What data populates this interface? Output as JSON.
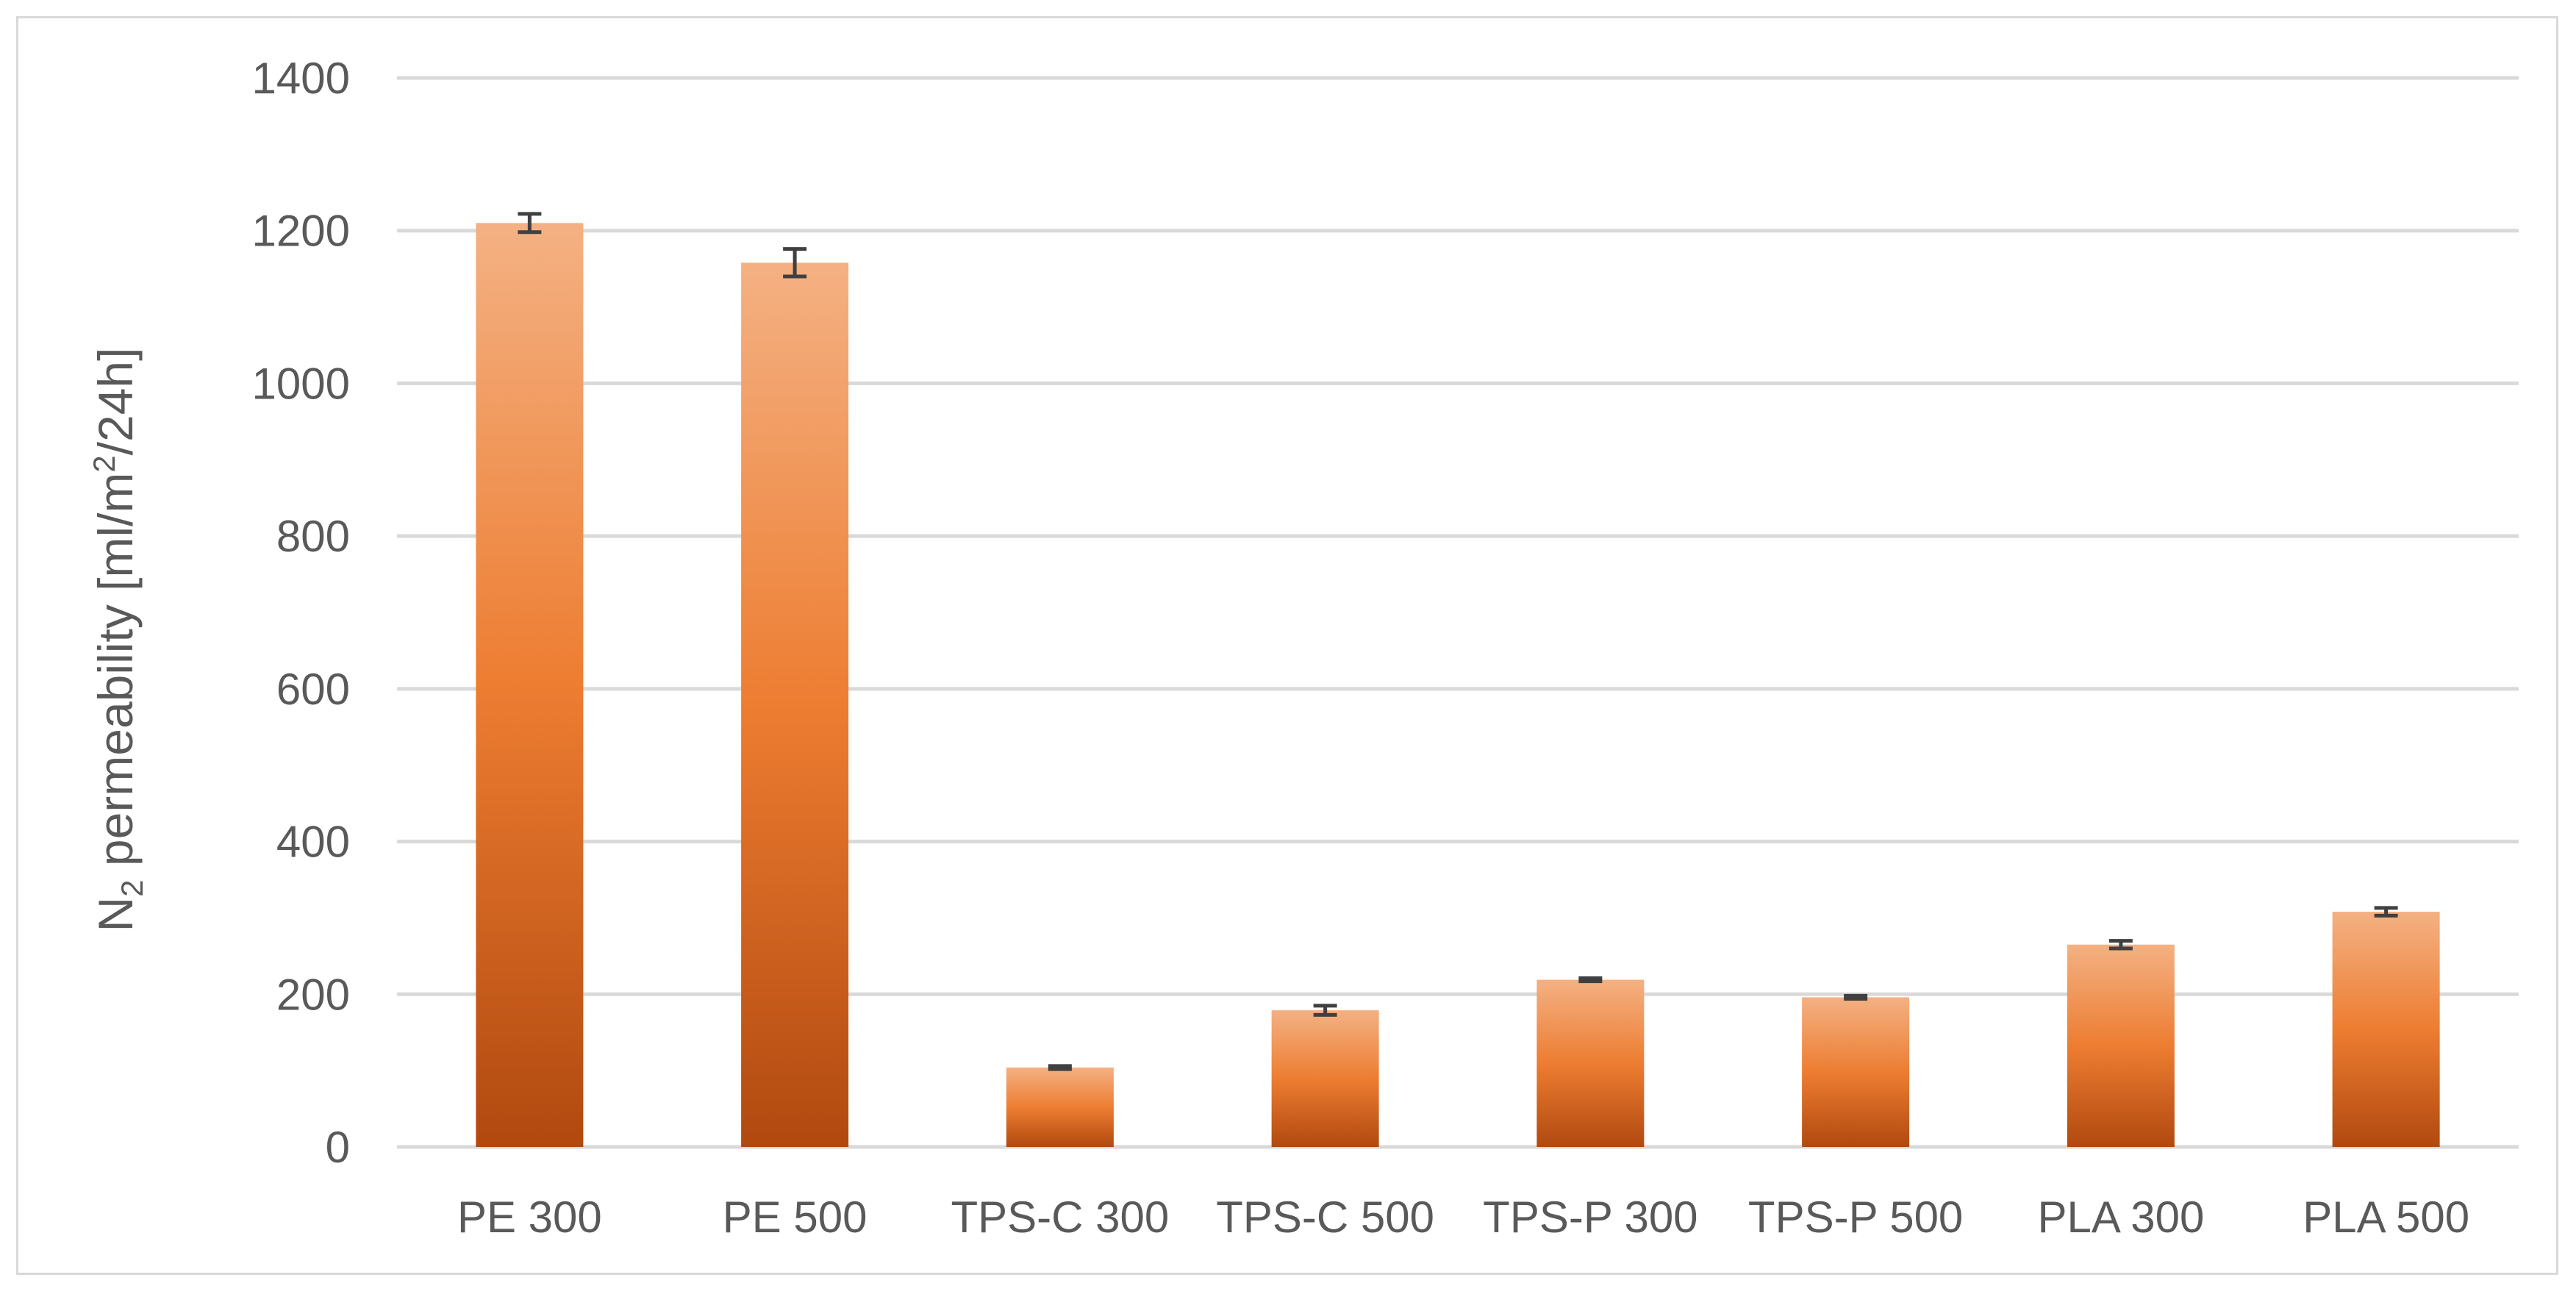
{
  "chart_data": {
    "type": "bar",
    "title": "",
    "xlabel": "",
    "ylabel_main": "N",
    "ylabel_sub": "2",
    "ylabel_rest": " permeability [ml/m",
    "ylabel_sup": "2",
    "ylabel_end": "/24h]",
    "categories": [
      "PE 300",
      "PE 500",
      "TPS-C 300",
      "TPS-C 500",
      "TPS-P 300",
      "TPS-P 500",
      "PLA 300",
      "PLA 500"
    ],
    "values": [
      1210,
      1158,
      104,
      179,
      219,
      196,
      265,
      308
    ],
    "errors": [
      12,
      18,
      2,
      6,
      2,
      2,
      5,
      5
    ],
    "ylim": [
      0,
      1400
    ],
    "yticks": [
      0,
      200,
      400,
      600,
      800,
      1000,
      1200,
      1400
    ],
    "ytick_labels": [
      "0",
      "200",
      "400",
      "600",
      "800",
      "1000",
      "1200",
      "1400"
    ],
    "grid": true,
    "legend": "none"
  },
  "colors": {
    "bar_top": "#f4b183",
    "bar_mid": "#ed7d31",
    "bar_bottom": "#b1490f",
    "grid": "#d9d9d9",
    "error_bar": "#404040",
    "text": "#595959"
  }
}
